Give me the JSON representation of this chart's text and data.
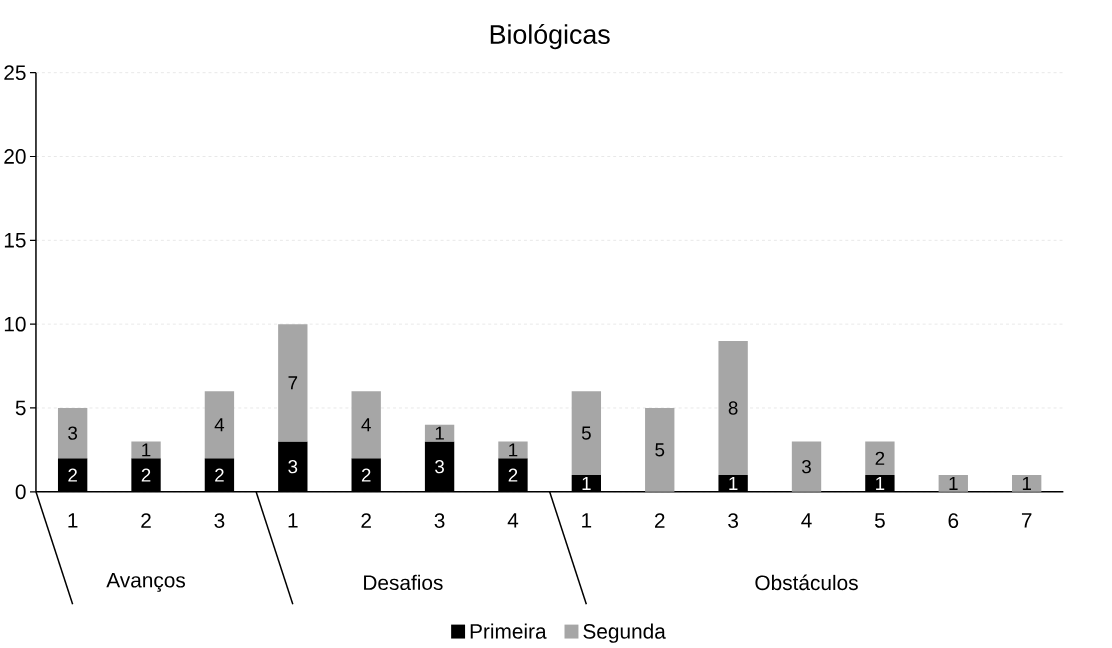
{
  "chart_data": {
    "type": "bar",
    "title": "Biológicas",
    "stacked": true,
    "categories": [
      "1",
      "2",
      "3",
      "1",
      "2",
      "3",
      "4",
      "1",
      "2",
      "3",
      "4",
      "5",
      "6",
      "7"
    ],
    "annotations": [
      "Avanços",
      "Desafios",
      "Obstáculos"
    ],
    "series": [
      {
        "name": "Primeira",
        "color": "#000000",
        "values": [
          2,
          2,
          2,
          3,
          2,
          3,
          2,
          1,
          null,
          1,
          null,
          1,
          null,
          null
        ]
      },
      {
        "name": "Segunda",
        "color": "#a6a6a6",
        "values": [
          3,
          1,
          4,
          7,
          4,
          1,
          1,
          5,
          5,
          8,
          3,
          2,
          1,
          1
        ]
      }
    ],
    "ylim": [
      0,
      25
    ],
    "yticks": [
      0,
      5,
      10,
      15,
      20,
      25
    ],
    "grid": "y",
    "legend": "bottom",
    "data_labels": true
  }
}
